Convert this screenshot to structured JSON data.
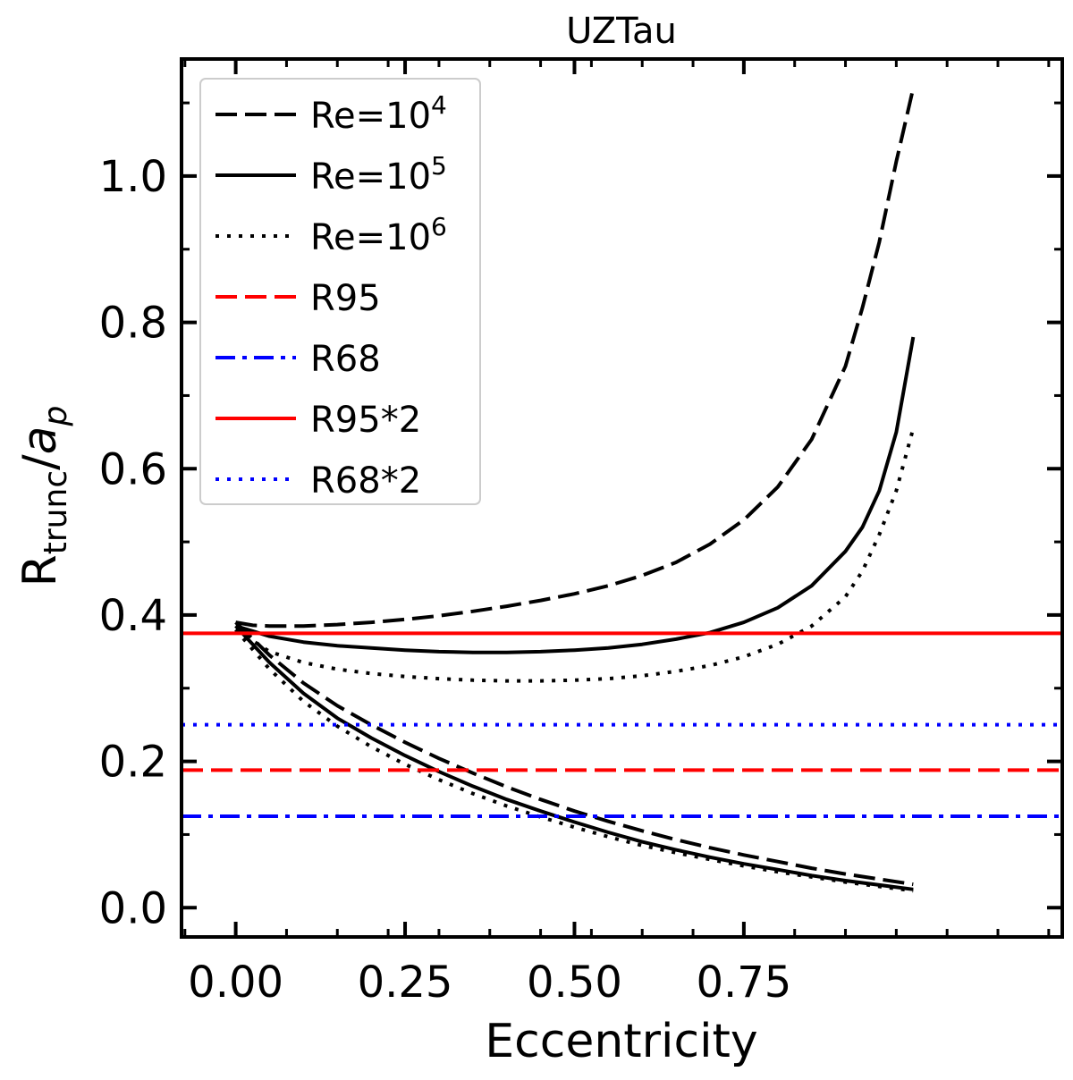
{
  "chart_data": {
    "type": "line",
    "title": "UZTau",
    "xlabel": "Eccentricity",
    "ylabel": {
      "main": "R",
      "main_sub": "trunc",
      "slash": "/",
      "var": "a",
      "var_sub": "p"
    },
    "xlim": [
      -0.08,
      1.22
    ],
    "ylim": [
      -0.04,
      1.16
    ],
    "xticks": [
      {
        "value": 0.0,
        "label": "0.00"
      },
      {
        "value": 0.25,
        "label": "0.25"
      },
      {
        "value": 0.5,
        "label": "0.50"
      },
      {
        "value": 0.75,
        "label": "0.75"
      }
    ],
    "yticks": [
      {
        "value": 0.0,
        "label": "0.0"
      },
      {
        "value": 0.2,
        "label": "0.2"
      },
      {
        "value": 0.4,
        "label": "0.4"
      },
      {
        "value": 0.6,
        "label": "0.6"
      },
      {
        "value": 0.8,
        "label": "0.8"
      },
      {
        "value": 1.0,
        "label": "1.0"
      }
    ],
    "x_minor_step": 0.075,
    "y_minor_step": 0.1,
    "legend_position": "top-left",
    "series": [
      {
        "name": "Re=10^4",
        "legend_base": "Re=10",
        "legend_exp": "4",
        "color": "#000000",
        "style": "dashed",
        "kind": "curve",
        "branches": [
          {
            "x": [
              0.0,
              0.025,
              0.05,
              0.1,
              0.15,
              0.2,
              0.25,
              0.3,
              0.35,
              0.4,
              0.45,
              0.5,
              0.55,
              0.6,
              0.65,
              0.7,
              0.75,
              0.8,
              0.85,
              0.9,
              0.925,
              0.95,
              0.975,
              1.0
            ],
            "y": [
              0.39,
              0.386,
              0.385,
              0.385,
              0.387,
              0.39,
              0.394,
              0.399,
              0.405,
              0.412,
              0.42,
              0.429,
              0.44,
              0.454,
              0.472,
              0.497,
              0.53,
              0.575,
              0.64,
              0.74,
              0.82,
              0.91,
              1.02,
              1.12
            ]
          },
          {
            "x": [
              0.0,
              0.05,
              0.1,
              0.15,
              0.2,
              0.25,
              0.3,
              0.35,
              0.4,
              0.45,
              0.5,
              0.55,
              0.6,
              0.65,
              0.7,
              0.75,
              0.8,
              0.85,
              0.9,
              0.95,
              1.0
            ],
            "y": [
              0.39,
              0.345,
              0.307,
              0.276,
              0.25,
              0.226,
              0.204,
              0.184,
              0.165,
              0.148,
              0.132,
              0.118,
              0.105,
              0.093,
              0.082,
              0.072,
              0.063,
              0.054,
              0.046,
              0.039,
              0.032
            ]
          }
        ]
      },
      {
        "name": "Re=10^5",
        "legend_base": "Re=10",
        "legend_exp": "5",
        "color": "#000000",
        "style": "solid",
        "kind": "curve",
        "branches": [
          {
            "x": [
              0.0,
              0.05,
              0.1,
              0.15,
              0.2,
              0.25,
              0.3,
              0.35,
              0.4,
              0.45,
              0.5,
              0.55,
              0.6,
              0.65,
              0.7,
              0.75,
              0.8,
              0.85,
              0.9,
              0.925,
              0.95,
              0.975,
              1.0
            ],
            "y": [
              0.385,
              0.371,
              0.363,
              0.358,
              0.355,
              0.352,
              0.35,
              0.349,
              0.349,
              0.35,
              0.352,
              0.355,
              0.36,
              0.367,
              0.376,
              0.39,
              0.41,
              0.44,
              0.487,
              0.52,
              0.57,
              0.65,
              0.78
            ]
          },
          {
            "x": [
              0.0,
              0.05,
              0.1,
              0.15,
              0.2,
              0.25,
              0.3,
              0.35,
              0.4,
              0.45,
              0.5,
              0.55,
              0.6,
              0.65,
              0.7,
              0.75,
              0.8,
              0.85,
              0.9,
              0.95,
              1.0
            ],
            "y": [
              0.385,
              0.335,
              0.293,
              0.259,
              0.232,
              0.208,
              0.186,
              0.166,
              0.148,
              0.132,
              0.117,
              0.103,
              0.09,
              0.079,
              0.069,
              0.06,
              0.052,
              0.044,
              0.037,
              0.031,
              0.025
            ]
          }
        ]
      },
      {
        "name": "Re=10^6",
        "legend_base": "Re=10",
        "legend_exp": "6",
        "color": "#000000",
        "style": "dotted",
        "kind": "curve",
        "branches": [
          {
            "x": [
              0.0,
              0.05,
              0.1,
              0.15,
              0.2,
              0.25,
              0.3,
              0.35,
              0.4,
              0.45,
              0.5,
              0.55,
              0.6,
              0.65,
              0.7,
              0.75,
              0.8,
              0.85,
              0.9,
              0.925,
              0.95,
              0.975,
              1.0
            ],
            "y": [
              0.38,
              0.35,
              0.335,
              0.326,
              0.32,
              0.316,
              0.313,
              0.311,
              0.31,
              0.31,
              0.311,
              0.313,
              0.317,
              0.323,
              0.331,
              0.343,
              0.36,
              0.385,
              0.425,
              0.46,
              0.51,
              0.57,
              0.655
            ]
          },
          {
            "x": [
              0.0,
              0.05,
              0.1,
              0.15,
              0.2,
              0.25,
              0.3,
              0.35,
              0.4,
              0.45,
              0.5,
              0.55,
              0.6,
              0.65,
              0.7,
              0.75,
              0.8,
              0.85,
              0.9,
              0.95,
              1.0
            ],
            "y": [
              0.38,
              0.326,
              0.282,
              0.248,
              0.22,
              0.196,
              0.175,
              0.156,
              0.139,
              0.124,
              0.11,
              0.097,
              0.085,
              0.075,
              0.066,
              0.057,
              0.049,
              0.042,
              0.035,
              0.029,
              0.023
            ]
          }
        ]
      },
      {
        "name": "R95",
        "legend_base": "R95",
        "legend_exp": "",
        "color": "#ff0000",
        "style": "dashed",
        "kind": "hline",
        "y": 0.188
      },
      {
        "name": "R68",
        "legend_base": "R68",
        "legend_exp": "",
        "color": "#0000ff",
        "style": "dashdot",
        "kind": "hline",
        "y": 0.125
      },
      {
        "name": "R95*2",
        "legend_base": "R95*2",
        "legend_exp": "",
        "color": "#ff0000",
        "style": "solid",
        "kind": "hline",
        "y": 0.375
      },
      {
        "name": "R68*2",
        "legend_base": "R68*2",
        "legend_exp": "",
        "color": "#0000ff",
        "style": "dotted",
        "kind": "hline",
        "y": 0.25
      }
    ]
  }
}
